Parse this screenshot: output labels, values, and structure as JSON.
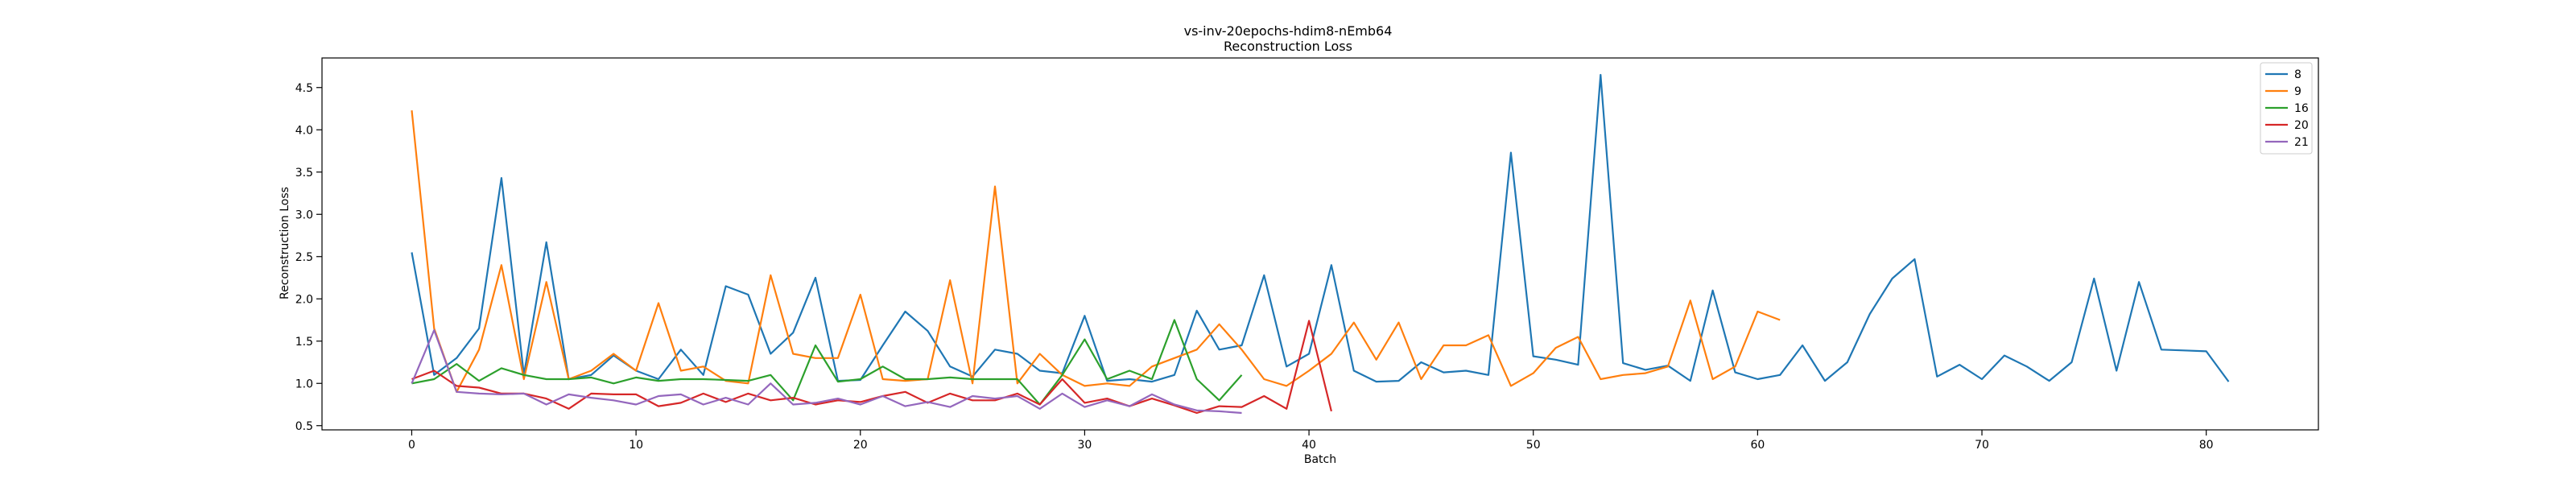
{
  "chart_data": {
    "type": "line",
    "title": "vs-inv-20epochs-hdim8-nEmb64",
    "subtitle": "Reconstruction Loss",
    "xlabel": "Batch",
    "ylabel": "Reconstruction Loss",
    "xlim": [
      -4,
      85
    ],
    "ylim": [
      0.45,
      4.85
    ],
    "xticks": [
      0,
      10,
      20,
      30,
      40,
      50,
      60,
      70,
      80
    ],
    "yticks": [
      0.5,
      1.0,
      1.5,
      2.0,
      2.5,
      3.0,
      3.5,
      4.0,
      4.5
    ],
    "grid": false,
    "legend_position": "top-right",
    "series": [
      {
        "name": "8",
        "color": "#1f77b4",
        "values": [
          2.55,
          1.1,
          1.3,
          1.65,
          3.43,
          1.1,
          2.67,
          1.05,
          1.1,
          1.33,
          1.15,
          1.05,
          1.4,
          1.1,
          2.15,
          2.05,
          1.35,
          1.6,
          2.25,
          1.03,
          1.04,
          1.45,
          1.85,
          1.62,
          1.2,
          1.08,
          1.4,
          1.35,
          1.15,
          1.12,
          1.8,
          1.03,
          1.05,
          1.02,
          1.1,
          1.86,
          1.4,
          1.45,
          2.28,
          1.2,
          1.35,
          2.4,
          1.15,
          1.02,
          1.03,
          1.25,
          1.13,
          1.15,
          1.1,
          3.73,
          1.32,
          1.28,
          1.22,
          4.65,
          1.24,
          1.16,
          1.21,
          1.03,
          2.1,
          1.13,
          1.05,
          1.1,
          1.45,
          1.03,
          1.25,
          1.82,
          2.24,
          2.47,
          1.08,
          1.22,
          1.05,
          1.33,
          1.2,
          1.03,
          1.25,
          2.24,
          1.15,
          2.2,
          1.4,
          1.39,
          1.38,
          1.02
        ]
      },
      {
        "name": "9",
        "color": "#ff7f0e",
        "values": [
          4.23,
          1.65,
          0.9,
          1.4,
          2.4,
          1.05,
          2.2,
          1.05,
          1.15,
          1.35,
          1.15,
          1.95,
          1.15,
          1.2,
          1.03,
          1.0,
          2.28,
          1.35,
          1.3,
          1.3,
          2.05,
          1.05,
          1.03,
          1.05,
          2.22,
          1.0,
          3.33,
          1.0,
          1.35,
          1.1,
          0.97,
          1.0,
          0.97,
          1.2,
          1.3,
          1.4,
          1.7,
          1.4,
          1.05,
          0.97,
          1.15,
          1.35,
          1.72,
          1.28,
          1.72,
          1.05,
          1.45,
          1.45,
          1.57,
          0.97,
          1.12,
          1.42,
          1.55,
          1.05,
          1.1,
          1.12,
          1.2,
          1.98,
          1.05,
          1.2,
          1.85,
          1.75
        ]
      },
      {
        "name": "16",
        "color": "#2ca02c",
        "values": [
          1.0,
          1.05,
          1.23,
          1.03,
          1.18,
          1.1,
          1.05,
          1.05,
          1.07,
          1.0,
          1.07,
          1.03,
          1.05,
          1.05,
          1.04,
          1.03,
          1.1,
          0.8,
          1.45,
          1.02,
          1.05,
          1.2,
          1.05,
          1.05,
          1.07,
          1.05,
          1.05,
          1.05,
          0.75,
          1.1,
          1.52,
          1.05,
          1.15,
          1.05,
          1.75,
          1.05,
          0.8,
          1.1
        ]
      },
      {
        "name": "20",
        "color": "#d62728",
        "values": [
          1.05,
          1.15,
          0.97,
          0.95,
          0.88,
          0.88,
          0.82,
          0.7,
          0.88,
          0.87,
          0.87,
          0.73,
          0.77,
          0.88,
          0.78,
          0.88,
          0.8,
          0.83,
          0.75,
          0.8,
          0.78,
          0.85,
          0.9,
          0.77,
          0.88,
          0.8,
          0.8,
          0.88,
          0.75,
          1.05,
          0.77,
          0.82,
          0.73,
          0.82,
          0.74,
          0.65,
          0.73,
          0.72,
          0.85,
          0.7,
          1.74,
          0.67
        ]
      },
      {
        "name": "21",
        "color": "#9467bd",
        "values": [
          1.0,
          1.63,
          0.9,
          0.88,
          0.87,
          0.88,
          0.75,
          0.87,
          0.83,
          0.8,
          0.75,
          0.85,
          0.87,
          0.75,
          0.83,
          0.75,
          1.0,
          0.75,
          0.77,
          0.82,
          0.75,
          0.85,
          0.73,
          0.78,
          0.72,
          0.85,
          0.82,
          0.85,
          0.7,
          0.88,
          0.72,
          0.8,
          0.73,
          0.87,
          0.75,
          0.68,
          0.67,
          0.65
        ]
      }
    ]
  }
}
